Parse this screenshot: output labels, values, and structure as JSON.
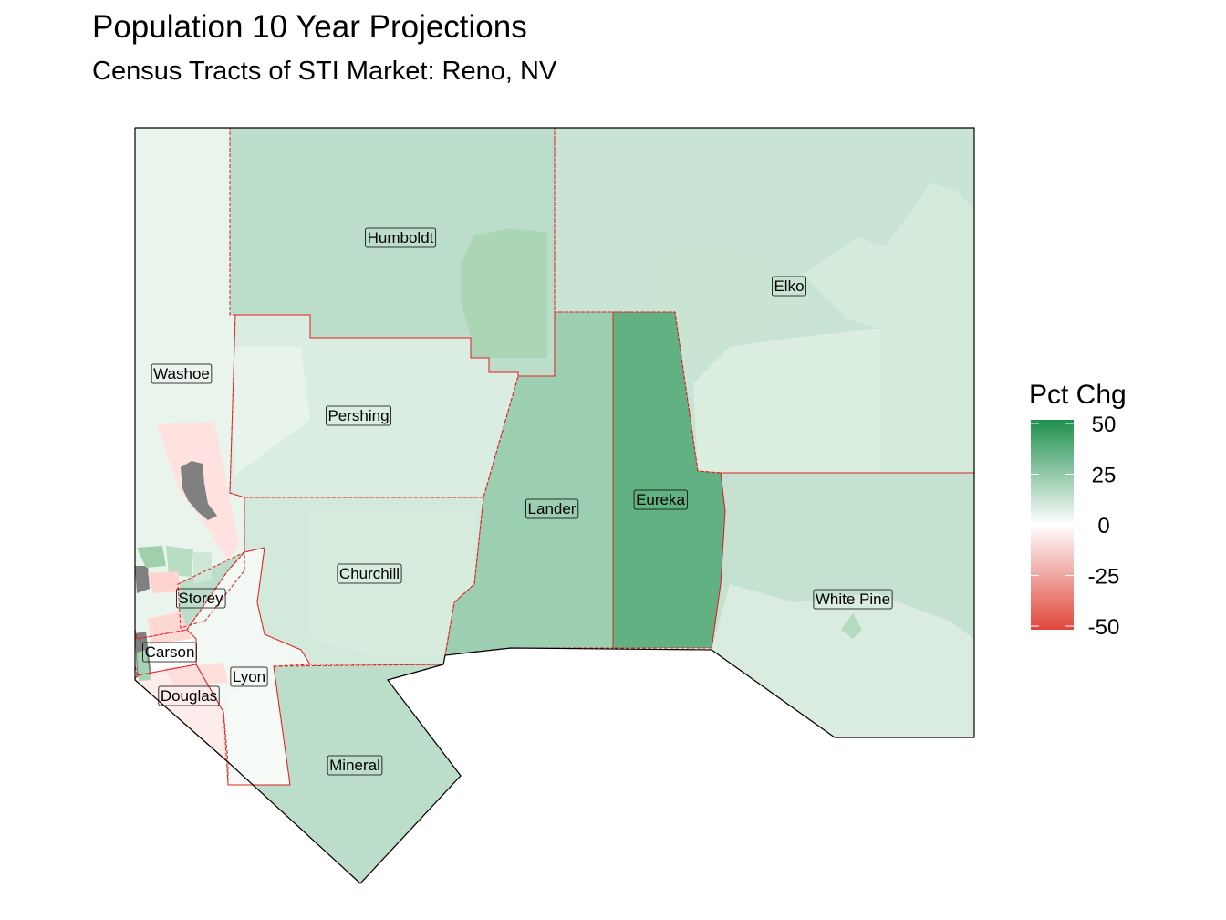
{
  "title": "Population 10 Year Projections",
  "subtitle": "Census Tracts of STI Market: Reno, NV",
  "legend": {
    "title": "Pct Chg",
    "ticks": [
      "50",
      "25",
      "0",
      "-25",
      "-50"
    ],
    "tick_values": [
      50,
      25,
      0,
      -25,
      -50
    ],
    "range": [
      -50,
      50
    ],
    "colors": {
      "low": "#e0463a",
      "mid": "#ffffff",
      "high": "#1f8f4e"
    }
  },
  "colors": {
    "county_border": "#e02020",
    "outline": "#000000",
    "na_fill": "#808080"
  },
  "counties": [
    {
      "name": "Washoe",
      "label": "Washoe",
      "pct_chg": 5
    },
    {
      "name": "Humboldt",
      "label": "Humboldt",
      "pct_chg": 15
    },
    {
      "name": "Elko",
      "label": "Elko",
      "pct_chg": 12
    },
    {
      "name": "Pershing",
      "label": "Pershing",
      "pct_chg": 8
    },
    {
      "name": "Lander",
      "label": "Lander",
      "pct_chg": 22
    },
    {
      "name": "Eureka",
      "label": "Eureka",
      "pct_chg": 35
    },
    {
      "name": "White Pine",
      "label": "White Pine",
      "pct_chg": 13
    },
    {
      "name": "Churchill",
      "label": "Churchill",
      "pct_chg": 10
    },
    {
      "name": "Storey",
      "label": "Storey",
      "pct_chg": 15
    },
    {
      "name": "Carson",
      "label": "Carson",
      "pct_chg": 0
    },
    {
      "name": "Lyon",
      "label": "Lyon",
      "pct_chg": 3
    },
    {
      "name": "Douglas",
      "label": "Douglas",
      "pct_chg": -5
    },
    {
      "name": "Mineral",
      "label": "Mineral",
      "pct_chg": 15
    }
  ]
}
